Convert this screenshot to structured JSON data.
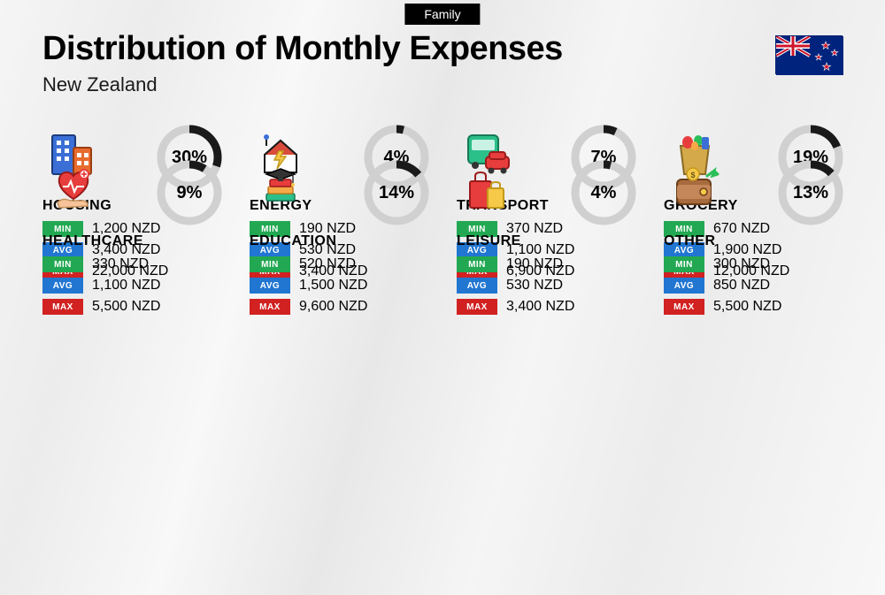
{
  "tag": "Family",
  "title": "Distribution of Monthly Expenses",
  "subtitle": "New Zealand",
  "currency": "NZD",
  "labels": {
    "min": "MIN",
    "avg": "AVG",
    "max": "MAX"
  },
  "colors": {
    "min": "#22a852",
    "avg": "#2176d1",
    "max": "#d12121",
    "ring_fg": "#1a1a1a",
    "ring_bg": "#d0d0d0",
    "text": "#000000",
    "tag_bg": "#000000",
    "tag_fg": "#ffffff"
  },
  "ring": {
    "radius": 32,
    "stroke": 9
  },
  "flag": {
    "bg": "#00247d",
    "red": "#cf142b",
    "white": "#ffffff"
  },
  "categories": [
    {
      "key": "housing",
      "name": "HOUSING",
      "pct": 30,
      "min": "1,200",
      "avg": "3,400",
      "max": "22,000",
      "icon": "buildings"
    },
    {
      "key": "energy",
      "name": "ENERGY",
      "pct": 4,
      "min": "190",
      "avg": "530",
      "max": "3,400",
      "icon": "house-bolt"
    },
    {
      "key": "transport",
      "name": "TRANSPORT",
      "pct": 7,
      "min": "370",
      "avg": "1,100",
      "max": "6,900",
      "icon": "bus-car"
    },
    {
      "key": "grocery",
      "name": "GROCERY",
      "pct": 19,
      "min": "670",
      "avg": "1,900",
      "max": "12,000",
      "icon": "grocery-bag"
    },
    {
      "key": "healthcare",
      "name": "HEALTHCARE",
      "pct": 9,
      "min": "330",
      "avg": "1,100",
      "max": "5,500",
      "icon": "heart-hand"
    },
    {
      "key": "education",
      "name": "EDUCATION",
      "pct": 14,
      "min": "520",
      "avg": "1,500",
      "max": "9,600",
      "icon": "grad-books"
    },
    {
      "key": "leisure",
      "name": "LEISURE",
      "pct": 4,
      "min": "190",
      "avg": "530",
      "max": "3,400",
      "icon": "shopping-bags"
    },
    {
      "key": "other",
      "name": "OTHER",
      "pct": 13,
      "min": "300",
      "avg": "850",
      "max": "5,500",
      "icon": "wallet"
    }
  ]
}
